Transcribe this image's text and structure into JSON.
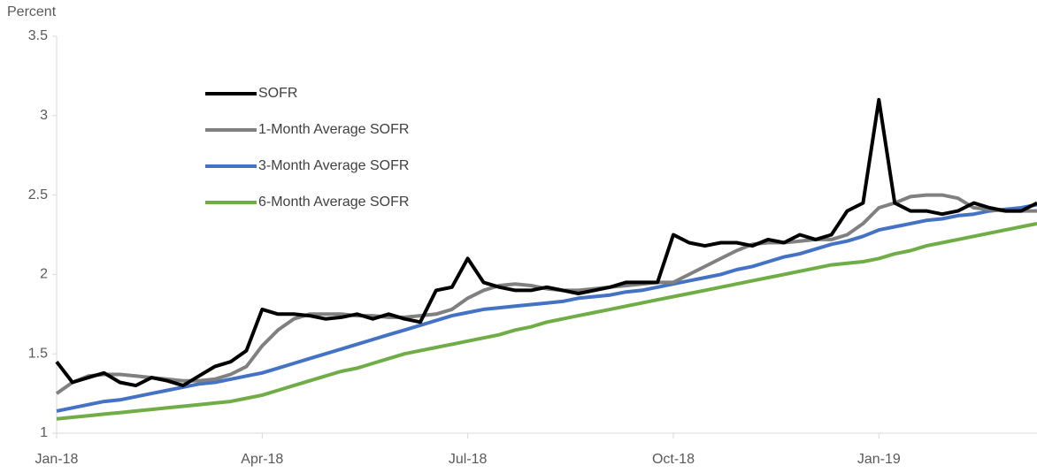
{
  "chart_data": {
    "type": "line",
    "y_label": "Percent",
    "categories": [
      "Jan-18",
      null,
      null,
      null,
      null,
      null,
      null,
      null,
      null,
      null,
      null,
      null,
      null,
      "Apr-18",
      null,
      null,
      null,
      null,
      null,
      null,
      null,
      null,
      null,
      null,
      null,
      null,
      "Jul-18",
      null,
      null,
      null,
      null,
      null,
      null,
      null,
      null,
      null,
      null,
      null,
      null,
      "Oct-18",
      null,
      null,
      null,
      null,
      null,
      null,
      null,
      null,
      null,
      null,
      null,
      null,
      "Jan-19",
      null,
      null,
      null,
      null,
      null,
      null,
      null,
      null,
      null,
      null
    ],
    "series": [
      {
        "name": "SOFR",
        "color": "#000000",
        "values": [
          1.45,
          1.32,
          1.35,
          1.38,
          1.32,
          1.3,
          1.35,
          1.33,
          1.3,
          1.36,
          1.42,
          1.45,
          1.52,
          1.78,
          1.75,
          1.75,
          1.74,
          1.72,
          1.73,
          1.75,
          1.72,
          1.75,
          1.72,
          1.7,
          1.9,
          1.92,
          2.1,
          1.95,
          1.92,
          1.9,
          1.9,
          1.92,
          1.9,
          1.88,
          1.9,
          1.92,
          1.95,
          1.95,
          1.95,
          2.25,
          2.2,
          2.18,
          2.2,
          2.2,
          2.18,
          2.22,
          2.2,
          2.25,
          2.22,
          2.25,
          2.4,
          2.45,
          3.1,
          2.45,
          2.4,
          2.4,
          2.38,
          2.4,
          2.45,
          2.42,
          2.4,
          2.4,
          2.45
        ]
      },
      {
        "name": "1-Month Average SOFR",
        "color": "#808080",
        "values": [
          1.25,
          1.32,
          1.36,
          1.37,
          1.37,
          1.36,
          1.35,
          1.34,
          1.33,
          1.33,
          1.34,
          1.37,
          1.42,
          1.55,
          1.65,
          1.72,
          1.75,
          1.75,
          1.75,
          1.74,
          1.74,
          1.73,
          1.73,
          1.74,
          1.75,
          1.78,
          1.85,
          1.9,
          1.93,
          1.94,
          1.93,
          1.91,
          1.9,
          1.9,
          1.91,
          1.92,
          1.93,
          1.94,
          1.95,
          1.95,
          2.0,
          2.05,
          2.1,
          2.15,
          2.19,
          2.2,
          2.2,
          2.21,
          2.22,
          2.22,
          2.25,
          2.32,
          2.42,
          2.45,
          2.49,
          2.5,
          2.5,
          2.48,
          2.42,
          2.41,
          2.4,
          2.4,
          2.4
        ]
      },
      {
        "name": "3-Month Average SOFR",
        "color": "#4472c4",
        "values": [
          1.14,
          1.16,
          1.18,
          1.2,
          1.21,
          1.23,
          1.25,
          1.27,
          1.29,
          1.31,
          1.32,
          1.34,
          1.36,
          1.38,
          1.41,
          1.44,
          1.47,
          1.5,
          1.53,
          1.56,
          1.59,
          1.62,
          1.65,
          1.68,
          1.71,
          1.74,
          1.76,
          1.78,
          1.79,
          1.8,
          1.81,
          1.82,
          1.83,
          1.85,
          1.86,
          1.87,
          1.89,
          1.9,
          1.92,
          1.94,
          1.96,
          1.98,
          2.0,
          2.03,
          2.05,
          2.08,
          2.11,
          2.13,
          2.16,
          2.19,
          2.21,
          2.24,
          2.28,
          2.3,
          2.32,
          2.34,
          2.35,
          2.37,
          2.38,
          2.4,
          2.41,
          2.42,
          2.44
        ]
      },
      {
        "name": "6-Month Average SOFR",
        "color": "#70ad47",
        "values": [
          1.09,
          1.1,
          1.11,
          1.12,
          1.13,
          1.14,
          1.15,
          1.16,
          1.17,
          1.18,
          1.19,
          1.2,
          1.22,
          1.24,
          1.27,
          1.3,
          1.33,
          1.36,
          1.39,
          1.41,
          1.44,
          1.47,
          1.5,
          1.52,
          1.54,
          1.56,
          1.58,
          1.6,
          1.62,
          1.65,
          1.67,
          1.7,
          1.72,
          1.74,
          1.76,
          1.78,
          1.8,
          1.82,
          1.84,
          1.86,
          1.88,
          1.9,
          1.92,
          1.94,
          1.96,
          1.98,
          2.0,
          2.02,
          2.04,
          2.06,
          2.07,
          2.08,
          2.1,
          2.13,
          2.15,
          2.18,
          2.2,
          2.22,
          2.24,
          2.26,
          2.28,
          2.3,
          2.32
        ]
      }
    ],
    "ylim": [
      1,
      3.5
    ],
    "yticks": [
      1,
      1.5,
      2,
      2.5,
      3,
      3.5
    ],
    "grid": false
  }
}
